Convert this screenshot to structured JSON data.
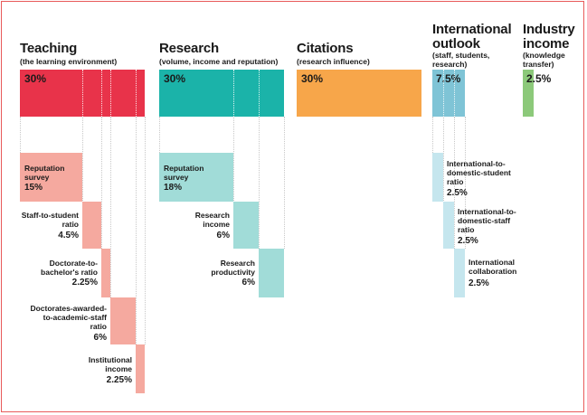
{
  "colors": {
    "teaching": "#e8334a",
    "teaching_light": "#f5a99f",
    "research": "#1bb3a9",
    "research_light": "#a1dcd8",
    "citations": "#f7a64a",
    "international": "#7fc4d6",
    "international_light": "#c5e6ee",
    "industry": "#8cc97a",
    "frame": "#e85a5a"
  },
  "categories": {
    "teaching": {
      "title": "Teaching",
      "subtitle": "(the learning environment)",
      "weight": "30%",
      "items": [
        {
          "label": "Reputation survey",
          "pct": "15%"
        },
        {
          "label": "Staff-to-student ratio",
          "pct": "4.5%"
        },
        {
          "label": "Doctorate-to-bachelor's ratio",
          "pct": "2.25%"
        },
        {
          "label": "Doctorates-awarded-to-academic-staff ratio",
          "pct": "6%"
        },
        {
          "label": "Institutional income",
          "pct": "2.25%"
        }
      ]
    },
    "research": {
      "title": "Research",
      "subtitle": "(volume, income and reputation)",
      "weight": "30%",
      "items": [
        {
          "label": "Reputation survey",
          "pct": "18%"
        },
        {
          "label": "Research income",
          "pct": "6%"
        },
        {
          "label": "Research productivity",
          "pct": "6%"
        }
      ]
    },
    "citations": {
      "title": "Citations",
      "subtitle": "(research influence)",
      "weight": "30%"
    },
    "international": {
      "title": "International outlook",
      "subtitle": "(staff, students, research)",
      "weight": "7.5%",
      "items": [
        {
          "label": "International-to-domestic-student ratio",
          "pct": "2.5%"
        },
        {
          "label": "International-to-domestic-staff ratio",
          "pct": "2.5%"
        },
        {
          "label": "International collaboration",
          "pct": "2.5%"
        }
      ]
    },
    "industry": {
      "title": "Industry income",
      "subtitle": "(knowledge transfer)",
      "weight": "2.5%"
    }
  }
}
